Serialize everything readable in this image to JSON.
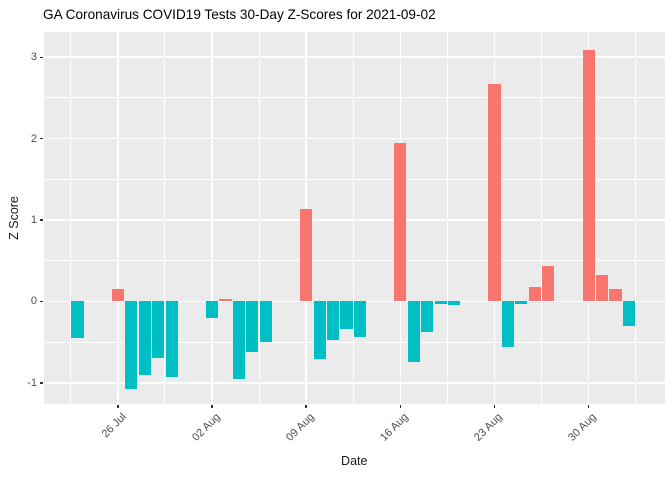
{
  "chart_data": {
    "type": "bar",
    "title": "GA Coronavirus COVID19 Tests 30-Day Z-Scores for 2021-09-02",
    "xlabel": "Date",
    "ylabel": "Z Score",
    "legend": "none",
    "grid": "on",
    "panel_background": "#EBEBEB",
    "gridline_color": "#FFFFFF",
    "positive_color": "#F8766D",
    "negative_color": "#00BFC4",
    "axis_text_color": "#4D4D4D",
    "ylim": [
      -1.26,
      3.31
    ],
    "x_origin_date": "2021-07-26",
    "xlim_days": [
      -5.53,
      40.68
    ],
    "bar_width_days": 0.9,
    "y_major_ticks": [
      {
        "value": -1,
        "label": "-1"
      },
      {
        "value": 0,
        "label": "0"
      },
      {
        "value": 1,
        "label": "1"
      },
      {
        "value": 2,
        "label": "2"
      },
      {
        "value": 3,
        "label": "3"
      }
    ],
    "y_minor_ticks": [
      -0.5,
      0.5,
      1.5,
      2.5
    ],
    "x_major_ticks": [
      {
        "date": "2021-07-26",
        "label": "26 Jul"
      },
      {
        "date": "2021-08-02",
        "label": "02 Aug"
      },
      {
        "date": "2021-08-09",
        "label": "09 Aug"
      },
      {
        "date": "2021-08-16",
        "label": "16 Aug"
      },
      {
        "date": "2021-08-23",
        "label": "23 Aug"
      },
      {
        "date": "2021-08-30",
        "label": "30 Aug"
      }
    ],
    "x_minor_day_offsets": [
      -3.5,
      3.5,
      10.5,
      17.5,
      24.5,
      31.5,
      38.5
    ],
    "bars": [
      {
        "date": "2021-07-23",
        "value": -0.45
      },
      {
        "date": "2021-07-26",
        "value": 0.15
      },
      {
        "date": "2021-07-27",
        "value": -1.08
      },
      {
        "date": "2021-07-28",
        "value": -0.9
      },
      {
        "date": "2021-07-29",
        "value": -0.69
      },
      {
        "date": "2021-07-30",
        "value": -0.93
      },
      {
        "date": "2021-08-02",
        "value": -0.2
      },
      {
        "date": "2021-08-03",
        "value": 0.03
      },
      {
        "date": "2021-08-04",
        "value": -0.95
      },
      {
        "date": "2021-08-05",
        "value": -0.62
      },
      {
        "date": "2021-08-06",
        "value": -0.5
      },
      {
        "date": "2021-08-09",
        "value": 1.13
      },
      {
        "date": "2021-08-10",
        "value": -0.71
      },
      {
        "date": "2021-08-11",
        "value": -0.47
      },
      {
        "date": "2021-08-12",
        "value": -0.34
      },
      {
        "date": "2021-08-13",
        "value": -0.44
      },
      {
        "date": "2021-08-16",
        "value": 1.95
      },
      {
        "date": "2021-08-17",
        "value": -0.75
      },
      {
        "date": "2021-08-18",
        "value": -0.38
      },
      {
        "date": "2021-08-19",
        "value": -0.03
      },
      {
        "date": "2021-08-20",
        "value": -0.04
      },
      {
        "date": "2021-08-23",
        "value": 2.67
      },
      {
        "date": "2021-08-24",
        "value": -0.56
      },
      {
        "date": "2021-08-25",
        "value": -0.03
      },
      {
        "date": "2021-08-26",
        "value": 0.18
      },
      {
        "date": "2021-08-27",
        "value": 0.44
      },
      {
        "date": "2021-08-30",
        "value": 3.09
      },
      {
        "date": "2021-08-31",
        "value": 0.32
      },
      {
        "date": "2021-09-01",
        "value": 0.15
      },
      {
        "date": "2021-09-02",
        "value": -0.3
      }
    ]
  }
}
